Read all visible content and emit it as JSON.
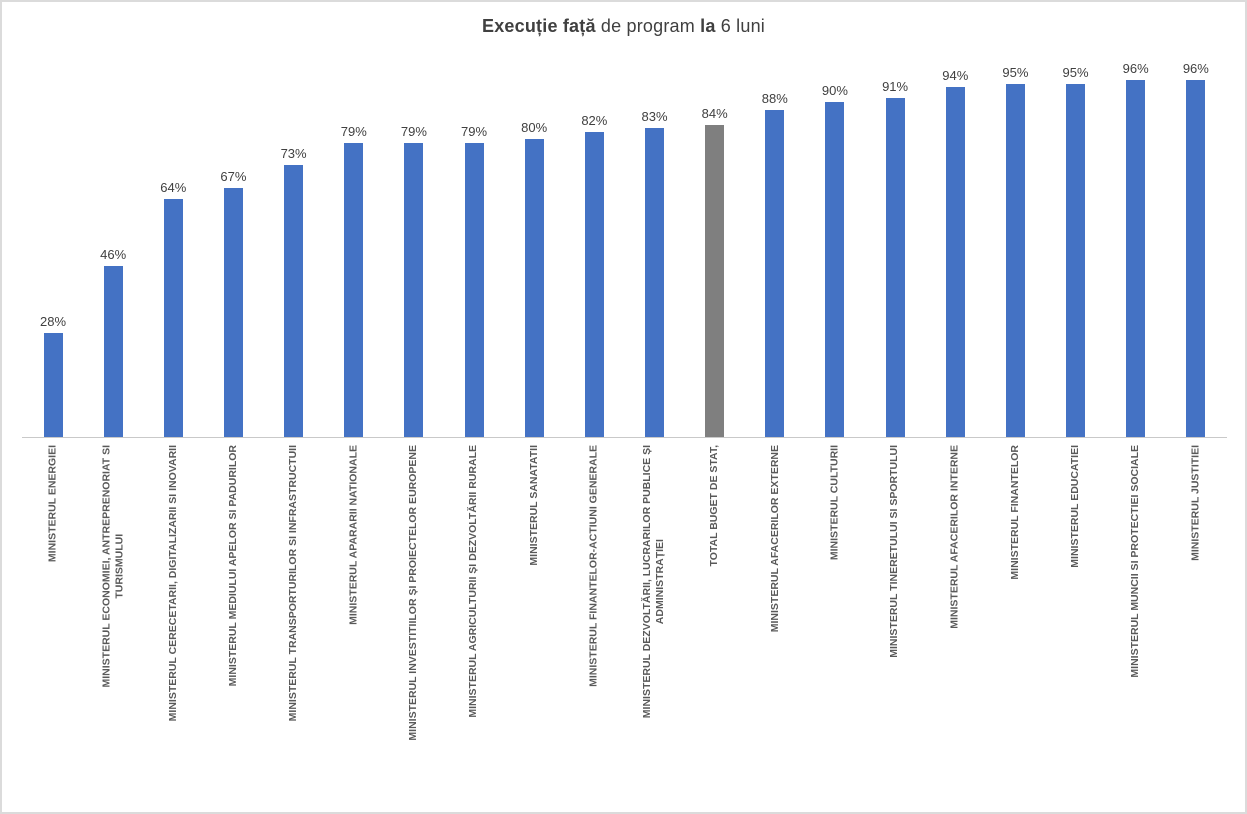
{
  "title": {
    "full": "Execuție față de program la 6 luni",
    "parts": [
      {
        "text": "Execuție față",
        "bold": true
      },
      {
        "text": " de program ",
        "bold": false
      },
      {
        "text": "la",
        "bold": true
      },
      {
        "text": " 6 luni",
        "bold": false
      }
    ]
  },
  "style": {
    "bar_color": "#4472C4",
    "highlight_bar_color": "#7F7F7F",
    "title_color": "#404040",
    "data_label_color": "#404040",
    "category_label_color": "#595959",
    "axis_line_color": "#C9C9C9",
    "frame_border_color": "#DBDBDB",
    "background": "#FFFFFF"
  },
  "chart_data": {
    "type": "bar",
    "title": "Execuție față de program la 6 luni",
    "xlabel": "",
    "ylabel": "",
    "unit": "%",
    "ylim": [
      0,
      100
    ],
    "grid": false,
    "legend": false,
    "categories": [
      [
        "MINISTERUL ENERGIEI"
      ],
      [
        "MINISTERUL ECONOMIEI, ANTREPRENORIAT SI",
        "TURISMULUI"
      ],
      [
        "MINISTERUL CERECETARII, DIGITALIZARII SI INOVARII"
      ],
      [
        "MINISTERUL MEDIULUI APELOR SI PADURILOR"
      ],
      [
        "MINISTERUL TRANSPORTURILOR SI INFRASTRUCTUII"
      ],
      [
        "MINISTERUL APARARII NATIONALE"
      ],
      [
        "MINISTERUL INVESTITIILOR ȘI PROIECTELOR EUROPENE"
      ],
      [
        "MINISTERUL AGRICULTURII ȘI DEZVOLTĂRII RURALE"
      ],
      [
        "MINISTERUL SANATATII"
      ],
      [
        "MINISTERUL FINANTELOR-ACTIUNI GENERALE"
      ],
      [
        "MINISTERUL DEZVOLTĂRII, LUCRARILOR PUBLICE ȘI",
        "ADMINISTRAȚIEI"
      ],
      [
        "TOTAL BUGET DE STAT,"
      ],
      [
        "MINISTERUL AFACERILOR EXTERNE"
      ],
      [
        "MINISTERUL CULTURII"
      ],
      [
        "MINISTERUL TINERETULUI SI SPORTULUI"
      ],
      [
        "MINISTERUL AFACERILOR INTERNE"
      ],
      [
        "MINISTERUL FINANTELOR"
      ],
      [
        "MINISTERUL EDUCATIEI"
      ],
      [
        "MINISTERUL MUNCII SI PROTECTIEI SOCIALE"
      ],
      [
        "MINISTERUL JUSTITIEI"
      ]
    ],
    "values": [
      28,
      46,
      64,
      67,
      73,
      79,
      79,
      79,
      80,
      82,
      83,
      84,
      88,
      90,
      91,
      94,
      95,
      95,
      96,
      96
    ],
    "data_labels": [
      "28%",
      "46%",
      "64%",
      "67%",
      "73%",
      "79%",
      "79%",
      "79%",
      "80%",
      "82%",
      "83%",
      "84%",
      "88%",
      "90%",
      "91%",
      "94%",
      "95%",
      "95%",
      "96%",
      "96%"
    ],
    "highlight": {
      "index": 11,
      "category": "TOTAL BUGET DE STAT,",
      "color": "#7F7F7F"
    }
  }
}
